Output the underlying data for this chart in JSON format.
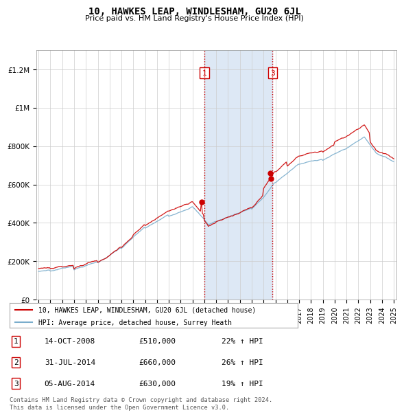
{
  "title": "10, HAWKES LEAP, WINDLESHAM, GU20 6JL",
  "subtitle": "Price paid vs. HM Land Registry's House Price Index (HPI)",
  "red_label": "10, HAWKES LEAP, WINDLESHAM, GU20 6JL (detached house)",
  "blue_label": "HPI: Average price, detached house, Surrey Heath",
  "legend_note": "Contains HM Land Registry data © Crown copyright and database right 2024.\nThis data is licensed under the Open Government Licence v3.0.",
  "rows": [
    {
      "num": "1",
      "date": "14-OCT-2008",
      "price": "£510,000",
      "hpi": "22% ↑ HPI"
    },
    {
      "num": "2",
      "date": "31-JUL-2014",
      "price": "£660,000",
      "hpi": "26% ↑ HPI"
    },
    {
      "num": "3",
      "date": "05-AUG-2014",
      "price": "£630,000",
      "hpi": "19% ↑ HPI"
    }
  ],
  "vline1_x": 2009.0,
  "vline2_x": 2014.75,
  "shade_color": "#dde8f5",
  "ylim": [
    0,
    1300000
  ],
  "ytick_vals": [
    0,
    200000,
    400000,
    600000,
    800000,
    1000000,
    1200000
  ],
  "ytick_labels": [
    "£0",
    "£200K",
    "£400K",
    "£600K",
    "£800K",
    "£1M",
    "£1.2M"
  ],
  "xlim_start": 1994.8,
  "xlim_end": 2025.2,
  "background_color": "#ffffff",
  "grid_color": "#cccccc",
  "red_color": "#cc0000",
  "blue_color": "#7aadcc",
  "marker1_x": 2008.79,
  "marker1_y": 510000,
  "marker2_x": 2014.58,
  "marker2_y": 660000,
  "marker3_x": 2014.6,
  "marker3_y": 630000
}
